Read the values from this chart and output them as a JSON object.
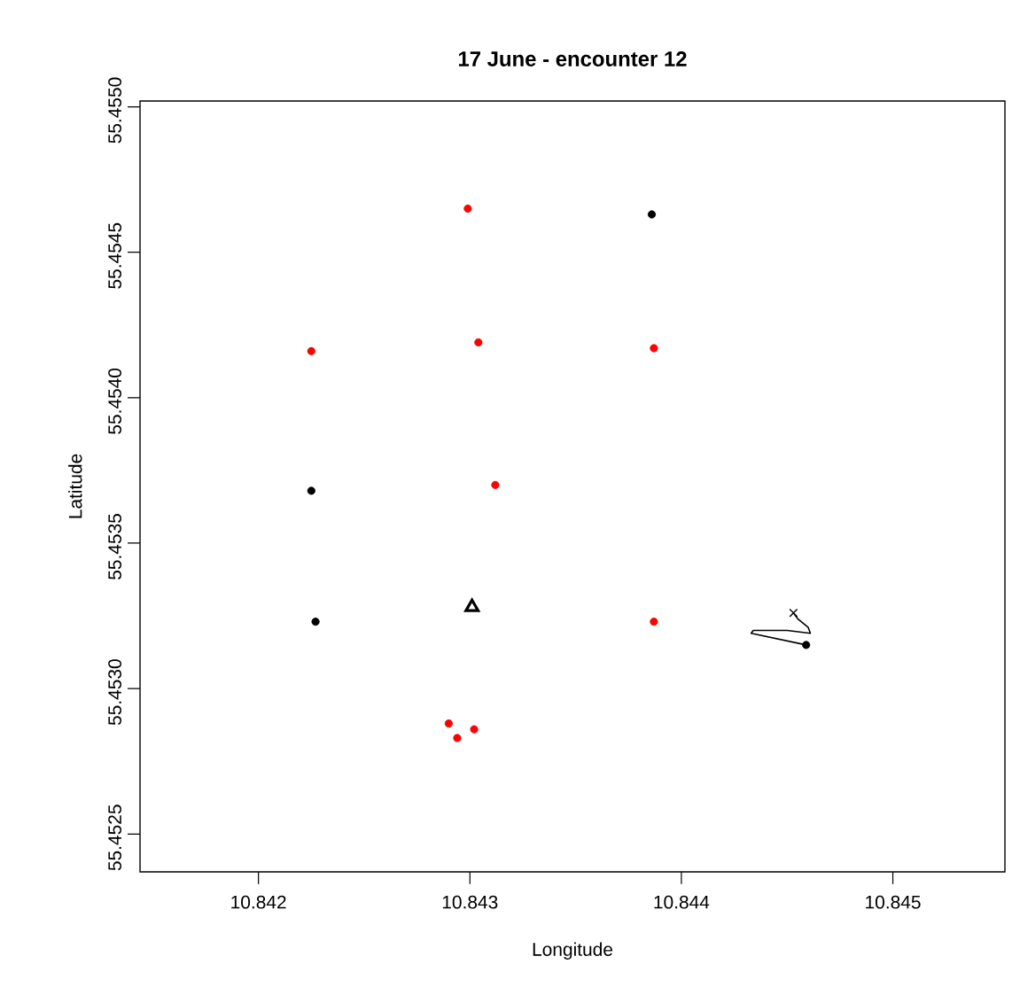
{
  "chart_data": {
    "type": "scatter",
    "title": "17 June - encounter 12",
    "xlabel": "Longitude",
    "ylabel": "Latitude",
    "xlim": [
      10.84144,
      10.84553
    ],
    "ylim": [
      55.45237,
      55.45502
    ],
    "xticks": [
      10.842,
      10.843,
      10.844,
      10.845
    ],
    "yticks": [
      {
        "value": 55.4525,
        "label": "55.4525"
      },
      {
        "value": 55.453,
        "label": "55.4530"
      },
      {
        "value": 55.4535,
        "label": "55.4535"
      },
      {
        "value": 55.454,
        "label": "55.4540"
      },
      {
        "value": 55.4545,
        "label": "55.4545"
      },
      {
        "value": 55.455,
        "label": "55.4550"
      }
    ],
    "series": [
      {
        "marker": "circle",
        "color": "#ff0000",
        "x": [
          10.84299,
          10.84225,
          10.84304,
          10.84387,
          10.84312,
          10.84387,
          10.8429,
          10.84294,
          10.84302
        ],
        "values": [
          55.45465,
          55.45416,
          55.45419,
          55.45417,
          55.4537,
          55.45323,
          55.45288,
          55.45283,
          55.45286
        ]
      },
      {
        "marker": "circle",
        "color": "#000000",
        "x": [
          10.84386,
          10.84225,
          10.84227
        ],
        "values": [
          55.45463,
          55.45368,
          55.45323
        ]
      },
      {
        "marker": "triangle",
        "color": "#000000",
        "x": [
          10.84301
        ],
        "values": [
          55.45328
        ]
      },
      {
        "type": "line",
        "marker": "none",
        "color": "#000000",
        "x": [
          10.84459,
          10.84433,
          10.84434,
          10.8445,
          10.84461,
          10.8446,
          10.84455,
          10.84453
        ],
        "values": [
          55.45315,
          55.45319,
          55.4532,
          55.4532,
          55.45319,
          55.45321,
          55.45324,
          55.45326
        ]
      },
      {
        "marker": "cross",
        "color": "#000000",
        "x": [
          10.84453
        ],
        "values": [
          55.45326
        ]
      },
      {
        "marker": "circle",
        "color": "#000000",
        "x": [
          10.84459
        ],
        "values": [
          55.45315
        ]
      }
    ]
  }
}
